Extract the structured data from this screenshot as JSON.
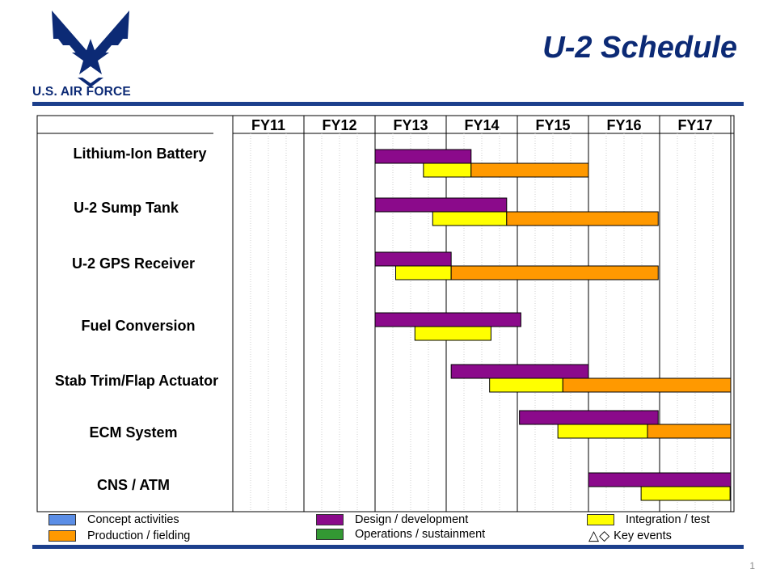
{
  "header": {
    "title": "U-2 Schedule",
    "logo_text": "U.S. AIR FORCE",
    "page_number": "1"
  },
  "colors": {
    "concept": "#5b8ee6",
    "design": "#8b0a8b",
    "integration": "#ffff00",
    "production": "#ff9900",
    "operations": "#339933",
    "brand_blue": "#0c2a75"
  },
  "chart_data": {
    "type": "gantt",
    "periods": [
      "FY11",
      "FY12",
      "FY13",
      "FY14",
      "FY15",
      "FY16",
      "FY17"
    ],
    "rows": [
      {
        "label": "Lithium-Ion Battery",
        "tasks": [
          {
            "phase": "design",
            "start": 2.0,
            "end": 3.35
          },
          {
            "phase": "integration",
            "start": 2.68,
            "end": 3.35
          },
          {
            "phase": "production",
            "start": 3.35,
            "end": 5.0
          }
        ]
      },
      {
        "label": "U-2 Sump Tank",
        "tasks": [
          {
            "phase": "design",
            "start": 2.0,
            "end": 3.85
          },
          {
            "phase": "integration",
            "start": 2.81,
            "end": 3.85
          },
          {
            "phase": "production",
            "start": 3.85,
            "end": 5.98
          }
        ]
      },
      {
        "label": "U-2 GPS Receiver",
        "tasks": [
          {
            "phase": "design",
            "start": 2.0,
            "end": 3.07
          },
          {
            "phase": "integration",
            "start": 2.29,
            "end": 3.07
          },
          {
            "phase": "production",
            "start": 3.07,
            "end": 5.98
          }
        ]
      },
      {
        "label": "Fuel Conversion",
        "tasks": [
          {
            "phase": "design",
            "start": 2.0,
            "end": 4.05
          },
          {
            "phase": "integration",
            "start": 2.56,
            "end": 3.63
          }
        ]
      },
      {
        "label": "Stab Trim/Flap Actuator",
        "tasks": [
          {
            "phase": "design",
            "start": 3.07,
            "end": 5.0
          },
          {
            "phase": "integration",
            "start": 3.61,
            "end": 4.64
          },
          {
            "phase": "production",
            "start": 4.64,
            "end": 7.0
          }
        ]
      },
      {
        "label": "ECM System",
        "tasks": [
          {
            "phase": "design",
            "start": 4.03,
            "end": 5.98
          },
          {
            "phase": "integration",
            "start": 4.57,
            "end": 5.83
          },
          {
            "phase": "production",
            "start": 5.83,
            "end": 7.0
          }
        ]
      },
      {
        "label": "CNS / ATM",
        "tasks": [
          {
            "phase": "design",
            "start": 5.0,
            "end": 7.0
          },
          {
            "phase": "integration",
            "start": 5.74,
            "end": 6.99
          }
        ]
      }
    ],
    "legend": [
      {
        "phase": "concept",
        "label": "Concept activities"
      },
      {
        "phase": "design",
        "label": "Design / development"
      },
      {
        "phase": "integration",
        "label": "Integration / test"
      },
      {
        "phase": "production",
        "label": "Production / fielding"
      },
      {
        "phase": "operations",
        "label": "Operations / sustainment"
      },
      {
        "phase": "events",
        "label": "Key events",
        "symbols": "△◇"
      }
    ]
  }
}
